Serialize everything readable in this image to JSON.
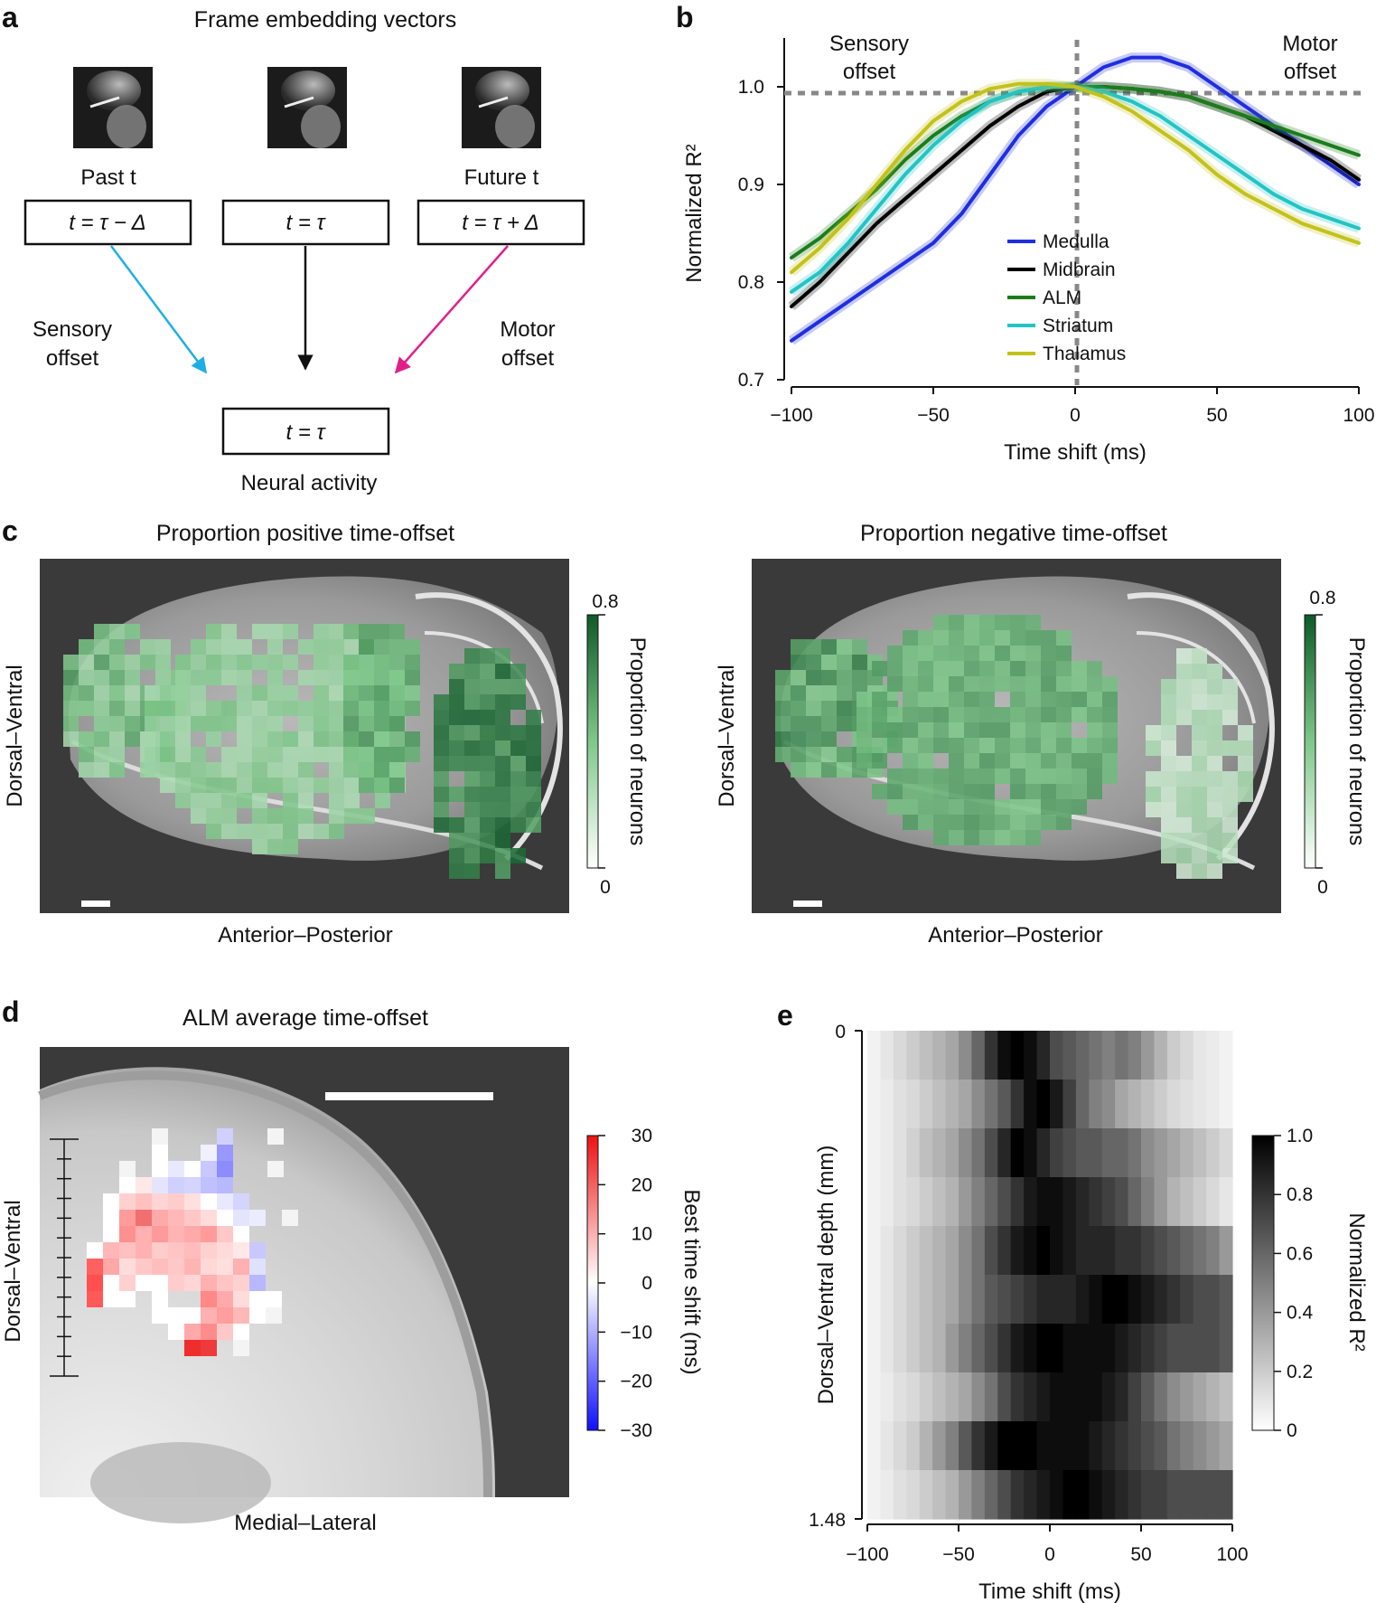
{
  "panel_a": {
    "label": "a",
    "title": "Frame embedding vectors",
    "past_label": "Past t",
    "future_label": "Future t",
    "box_past": "t = τ − Δ",
    "box_present": "t = τ",
    "box_future": "t = τ + Δ",
    "sensory_line1": "Sensory",
    "sensory_line2": "offset",
    "motor_line1": "Motor",
    "motor_line2": "offset",
    "neural_box": "t = τ",
    "neural_label": "Neural activity",
    "arrow_colors": {
      "sensory": "#1eaee6",
      "center": "#111111",
      "motor": "#e0208a"
    }
  },
  "panel_b": {
    "label": "b"
  },
  "panel_c": {
    "label": "c",
    "left_title": "Proportion positive time-offset",
    "right_title": "Proportion negative time-offset",
    "ylabel": "Dorsal–Ventral",
    "xlabel": "Anterior–Posterior",
    "cbar_label": "Proportion of neurons",
    "cbar_max": "0.8",
    "cbar_min": "0"
  },
  "panel_d": {
    "label": "d",
    "title": "ALM average time-offset",
    "ylabel": "Dorsal–Ventral",
    "xlabel": "Medial–Lateral",
    "cbar_label": "Best time shift (ms)",
    "cbar_ticks": [
      "30",
      "20",
      "10",
      "0",
      "−10",
      "−20",
      "−30"
    ]
  },
  "panel_e": {
    "label": "e",
    "cbar_label": "Normalized R²",
    "cbar_ticks": [
      "1.0",
      "0.8",
      "0.6",
      "0.4",
      "0.2",
      "0"
    ]
  },
  "chart_data": [
    {
      "type": "line",
      "panel": "b",
      "title": "",
      "xlabel": "Time shift (ms)",
      "ylabel": "Normalized R²",
      "xlim": [
        -100,
        100
      ],
      "ylim": [
        0.7,
        1.05
      ],
      "xticks": [
        -100,
        -50,
        0,
        50,
        100
      ],
      "xtick_labels": [
        "−100",
        "−50",
        "0",
        "50",
        "100"
      ],
      "yticks": [
        0.7,
        0.8,
        0.9,
        1.0
      ],
      "ytick_labels": [
        "0.7",
        "0.8",
        "0.9",
        "1.0"
      ],
      "annotations": {
        "left_line1": "Sensory",
        "left_line2": "offset",
        "right_line1": "Motor",
        "right_line2": "offset"
      },
      "reference_lines": {
        "x": 0,
        "y": 1.0
      },
      "x": [
        -100,
        -90,
        -80,
        -70,
        -60,
        -50,
        -40,
        -30,
        -20,
        -10,
        0,
        10,
        20,
        30,
        40,
        50,
        60,
        70,
        80,
        90,
        100
      ],
      "series": [
        {
          "name": "Medulla",
          "color": "#1f2ee0",
          "values": [
            0.74,
            0.76,
            0.78,
            0.8,
            0.82,
            0.84,
            0.87,
            0.91,
            0.95,
            0.98,
            1.0,
            1.02,
            1.03,
            1.03,
            1.02,
            1.0,
            0.98,
            0.96,
            0.94,
            0.92,
            0.9
          ]
        },
        {
          "name": "Midbrain",
          "color": "#000000",
          "values": [
            0.775,
            0.8,
            0.83,
            0.86,
            0.885,
            0.91,
            0.935,
            0.96,
            0.98,
            0.995,
            1.0,
            1.0,
            0.998,
            0.995,
            0.99,
            0.98,
            0.97,
            0.955,
            0.94,
            0.925,
            0.905
          ]
        },
        {
          "name": "ALM",
          "color": "#1a7d1a",
          "values": [
            0.825,
            0.845,
            0.87,
            0.895,
            0.925,
            0.95,
            0.97,
            0.985,
            0.995,
            1.0,
            1.0,
            1.0,
            0.998,
            0.995,
            0.99,
            0.98,
            0.97,
            0.96,
            0.95,
            0.94,
            0.93
          ]
        },
        {
          "name": "Striatum",
          "color": "#22c4c4",
          "values": [
            0.79,
            0.81,
            0.84,
            0.875,
            0.91,
            0.94,
            0.965,
            0.985,
            0.995,
            1.0,
            1.0,
            0.995,
            0.985,
            0.97,
            0.95,
            0.93,
            0.91,
            0.89,
            0.875,
            0.865,
            0.855
          ]
        },
        {
          "name": "Thalamus",
          "color": "#c2c21a",
          "values": [
            0.81,
            0.835,
            0.865,
            0.9,
            0.935,
            0.965,
            0.985,
            0.998,
            1.003,
            1.003,
            1.0,
            0.99,
            0.975,
            0.955,
            0.935,
            0.91,
            0.89,
            0.875,
            0.86,
            0.85,
            0.84
          ]
        }
      ]
    },
    {
      "type": "heatmap",
      "panel": "e",
      "xlabel": "Time shift (ms)",
      "ylabel": "Dorsal–Ventral depth (mm)",
      "xlim": [
        -100,
        100
      ],
      "xticks": [
        -100,
        -50,
        0,
        50,
        100
      ],
      "xtick_labels": [
        "−100",
        "−50",
        "0",
        "50",
        "100"
      ],
      "ytick_labels": [
        "0",
        "1.48"
      ],
      "value_range": [
        0,
        1.0
      ],
      "rows": [
        [
          0.05,
          0.1,
          0.15,
          0.2,
          0.25,
          0.3,
          0.35,
          0.45,
          0.6,
          0.8,
          0.95,
          1.0,
          0.95,
          0.85,
          0.7,
          0.65,
          0.6,
          0.55,
          0.5,
          0.55,
          0.5,
          0.4,
          0.3,
          0.2,
          0.15,
          0.1,
          0.08,
          0.05
        ],
        [
          0.05,
          0.08,
          0.12,
          0.15,
          0.2,
          0.25,
          0.3,
          0.35,
          0.45,
          0.55,
          0.65,
          0.8,
          0.95,
          1.0,
          0.9,
          0.75,
          0.6,
          0.5,
          0.45,
          0.35,
          0.3,
          0.25,
          0.2,
          0.15,
          0.12,
          0.1,
          0.08,
          0.05
        ],
        [
          0.05,
          0.08,
          0.12,
          0.18,
          0.25,
          0.3,
          0.35,
          0.45,
          0.55,
          0.7,
          0.85,
          1.0,
          0.95,
          0.85,
          0.75,
          0.7,
          0.65,
          0.65,
          0.6,
          0.6,
          0.55,
          0.45,
          0.4,
          0.35,
          0.3,
          0.25,
          0.2,
          0.15
        ],
        [
          0.05,
          0.08,
          0.12,
          0.15,
          0.2,
          0.25,
          0.3,
          0.4,
          0.5,
          0.6,
          0.7,
          0.8,
          0.9,
          0.95,
          0.95,
          0.9,
          0.85,
          0.8,
          0.75,
          0.7,
          0.6,
          0.5,
          0.4,
          0.3,
          0.25,
          0.2,
          0.15,
          0.1
        ],
        [
          0.05,
          0.1,
          0.15,
          0.2,
          0.25,
          0.3,
          0.35,
          0.45,
          0.55,
          0.7,
          0.8,
          0.9,
          0.95,
          1.0,
          0.95,
          0.9,
          0.85,
          0.85,
          0.85,
          0.8,
          0.8,
          0.75,
          0.7,
          0.65,
          0.6,
          0.55,
          0.5,
          0.4
        ],
        [
          0.05,
          0.1,
          0.15,
          0.2,
          0.25,
          0.3,
          0.35,
          0.45,
          0.55,
          0.65,
          0.7,
          0.75,
          0.8,
          0.85,
          0.85,
          0.85,
          0.9,
          0.95,
          1.0,
          1.0,
          0.95,
          0.9,
          0.85,
          0.8,
          0.75,
          0.7,
          0.7,
          0.65
        ],
        [
          0.05,
          0.1,
          0.15,
          0.2,
          0.25,
          0.3,
          0.4,
          0.5,
          0.6,
          0.7,
          0.8,
          0.9,
          0.95,
          1.0,
          1.0,
          0.95,
          0.95,
          0.95,
          0.95,
          0.9,
          0.85,
          0.8,
          0.75,
          0.7,
          0.7,
          0.7,
          0.7,
          0.65
        ],
        [
          0.05,
          0.08,
          0.12,
          0.15,
          0.2,
          0.25,
          0.3,
          0.35,
          0.45,
          0.55,
          0.7,
          0.8,
          0.85,
          0.9,
          0.95,
          0.95,
          0.95,
          0.95,
          0.9,
          0.85,
          0.75,
          0.65,
          0.55,
          0.45,
          0.4,
          0.35,
          0.3,
          0.25
        ],
        [
          0.05,
          0.1,
          0.15,
          0.2,
          0.3,
          0.4,
          0.5,
          0.65,
          0.8,
          0.9,
          1.0,
          1.0,
          1.0,
          0.95,
          0.95,
          0.95,
          0.95,
          0.9,
          0.85,
          0.8,
          0.75,
          0.7,
          0.65,
          0.55,
          0.5,
          0.45,
          0.4,
          0.35
        ],
        [
          0.05,
          0.08,
          0.12,
          0.15,
          0.2,
          0.25,
          0.3,
          0.4,
          0.5,
          0.6,
          0.7,
          0.8,
          0.85,
          0.9,
          0.95,
          1.0,
          1.0,
          0.95,
          0.9,
          0.85,
          0.8,
          0.75,
          0.75,
          0.7,
          0.7,
          0.7,
          0.7,
          0.7
        ]
      ]
    }
  ]
}
